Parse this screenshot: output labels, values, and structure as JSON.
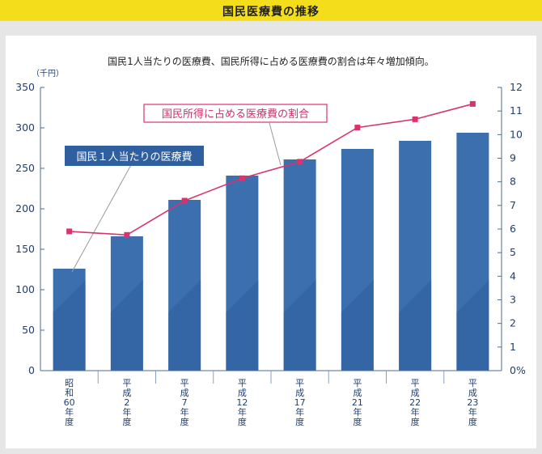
{
  "header": {
    "title": "国民医療費の推移",
    "bg_color": "#f4dd1a"
  },
  "chart_data": {
    "type": "bar",
    "subtitle": "国民1人当たりの医療費、国民所得に占める医療費の割合は年々増加傾向。",
    "left_unit": "（千円）",
    "categories": [
      "昭和60年度",
      "平成2年度",
      "平成7年度",
      "平成12年度",
      "平成17年度",
      "平成21年度",
      "平成22年度",
      "平成23年度"
    ],
    "category_labels": [
      [
        "昭",
        "和",
        "60",
        "年",
        "度"
      ],
      [
        "平",
        "成",
        "2",
        "年",
        "度"
      ],
      [
        "平",
        "成",
        "7",
        "年",
        "度"
      ],
      [
        "平",
        "成",
        "12",
        "年",
        "度"
      ],
      [
        "平",
        "成",
        "17",
        "年",
        "度"
      ],
      [
        "平",
        "成",
        "21",
        "年",
        "度"
      ],
      [
        "平",
        "成",
        "22",
        "年",
        "度"
      ],
      [
        "平",
        "成",
        "23",
        "年",
        "度"
      ]
    ],
    "series": [
      {
        "name": "国民１人当たりの医療費",
        "type": "bar",
        "axis": "left",
        "values": [
          126,
          166,
          211,
          241,
          261,
          274,
          284,
          294
        ],
        "color": "#3b6fad"
      },
      {
        "name": "国民所得に占める医療費の割合",
        "type": "line",
        "axis": "right",
        "values": [
          5.9,
          5.75,
          7.2,
          8.15,
          8.85,
          10.3,
          10.65,
          11.3
        ],
        "color": "#d9336f"
      }
    ],
    "left_axis": {
      "ylim": [
        0,
        350
      ],
      "ticks": [
        "0",
        "50",
        "100",
        "150",
        "200",
        "250",
        "300",
        "350"
      ]
    },
    "right_axis": {
      "ylim": [
        0,
        12
      ],
      "ticks": [
        "0%",
        "1",
        "2",
        "3",
        "4",
        "5",
        "6",
        "7",
        "8",
        "9",
        "10",
        "11",
        "12"
      ]
    },
    "grid": false,
    "annotations": {
      "bar_label": "国民１人当たりの医療費",
      "line_label": "国民所得に占める医療費の割合"
    }
  }
}
